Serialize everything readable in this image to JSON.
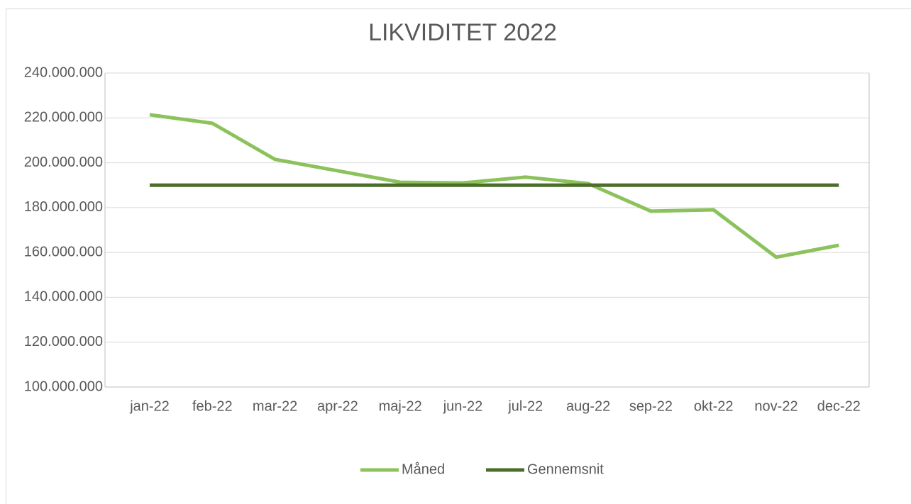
{
  "chart_data": {
    "type": "line",
    "title": "LIKVIDITET 2022",
    "categories": [
      "jan-22",
      "feb-22",
      "mar-22",
      "apr-22",
      "maj-22",
      "jun-22",
      "jul-22",
      "aug-22",
      "sep-22",
      "okt-22",
      "nov-22",
      "dec-22"
    ],
    "series": [
      {
        "name": "Måned",
        "color": "#8cc25b",
        "values": [
          221400000,
          217600000,
          201500000,
          196400000,
          191300000,
          191000000,
          193600000,
          190700000,
          178400000,
          179000000,
          157900000,
          163200000
        ]
      },
      {
        "name": "Gennemsnit",
        "color": "#4b6e2b",
        "values": [
          190000000,
          190000000,
          190000000,
          190000000,
          190000000,
          190000000,
          190000000,
          190000000,
          190000000,
          190000000,
          190000000,
          190000000
        ]
      }
    ],
    "ylim": [
      100000000,
      240000000
    ],
    "yticks": [
      {
        "value": 100000000,
        "label": "100.000.000"
      },
      {
        "value": 120000000,
        "label": "120.000.000"
      },
      {
        "value": 140000000,
        "label": "140.000.000"
      },
      {
        "value": 160000000,
        "label": "160.000.000"
      },
      {
        "value": 180000000,
        "label": "180.000.000"
      },
      {
        "value": 200000000,
        "label": "200.000.000"
      },
      {
        "value": 220000000,
        "label": "220.000.000"
      },
      {
        "value": 240000000,
        "label": "240.000.000"
      }
    ],
    "grid": true,
    "legend": "bottom"
  }
}
